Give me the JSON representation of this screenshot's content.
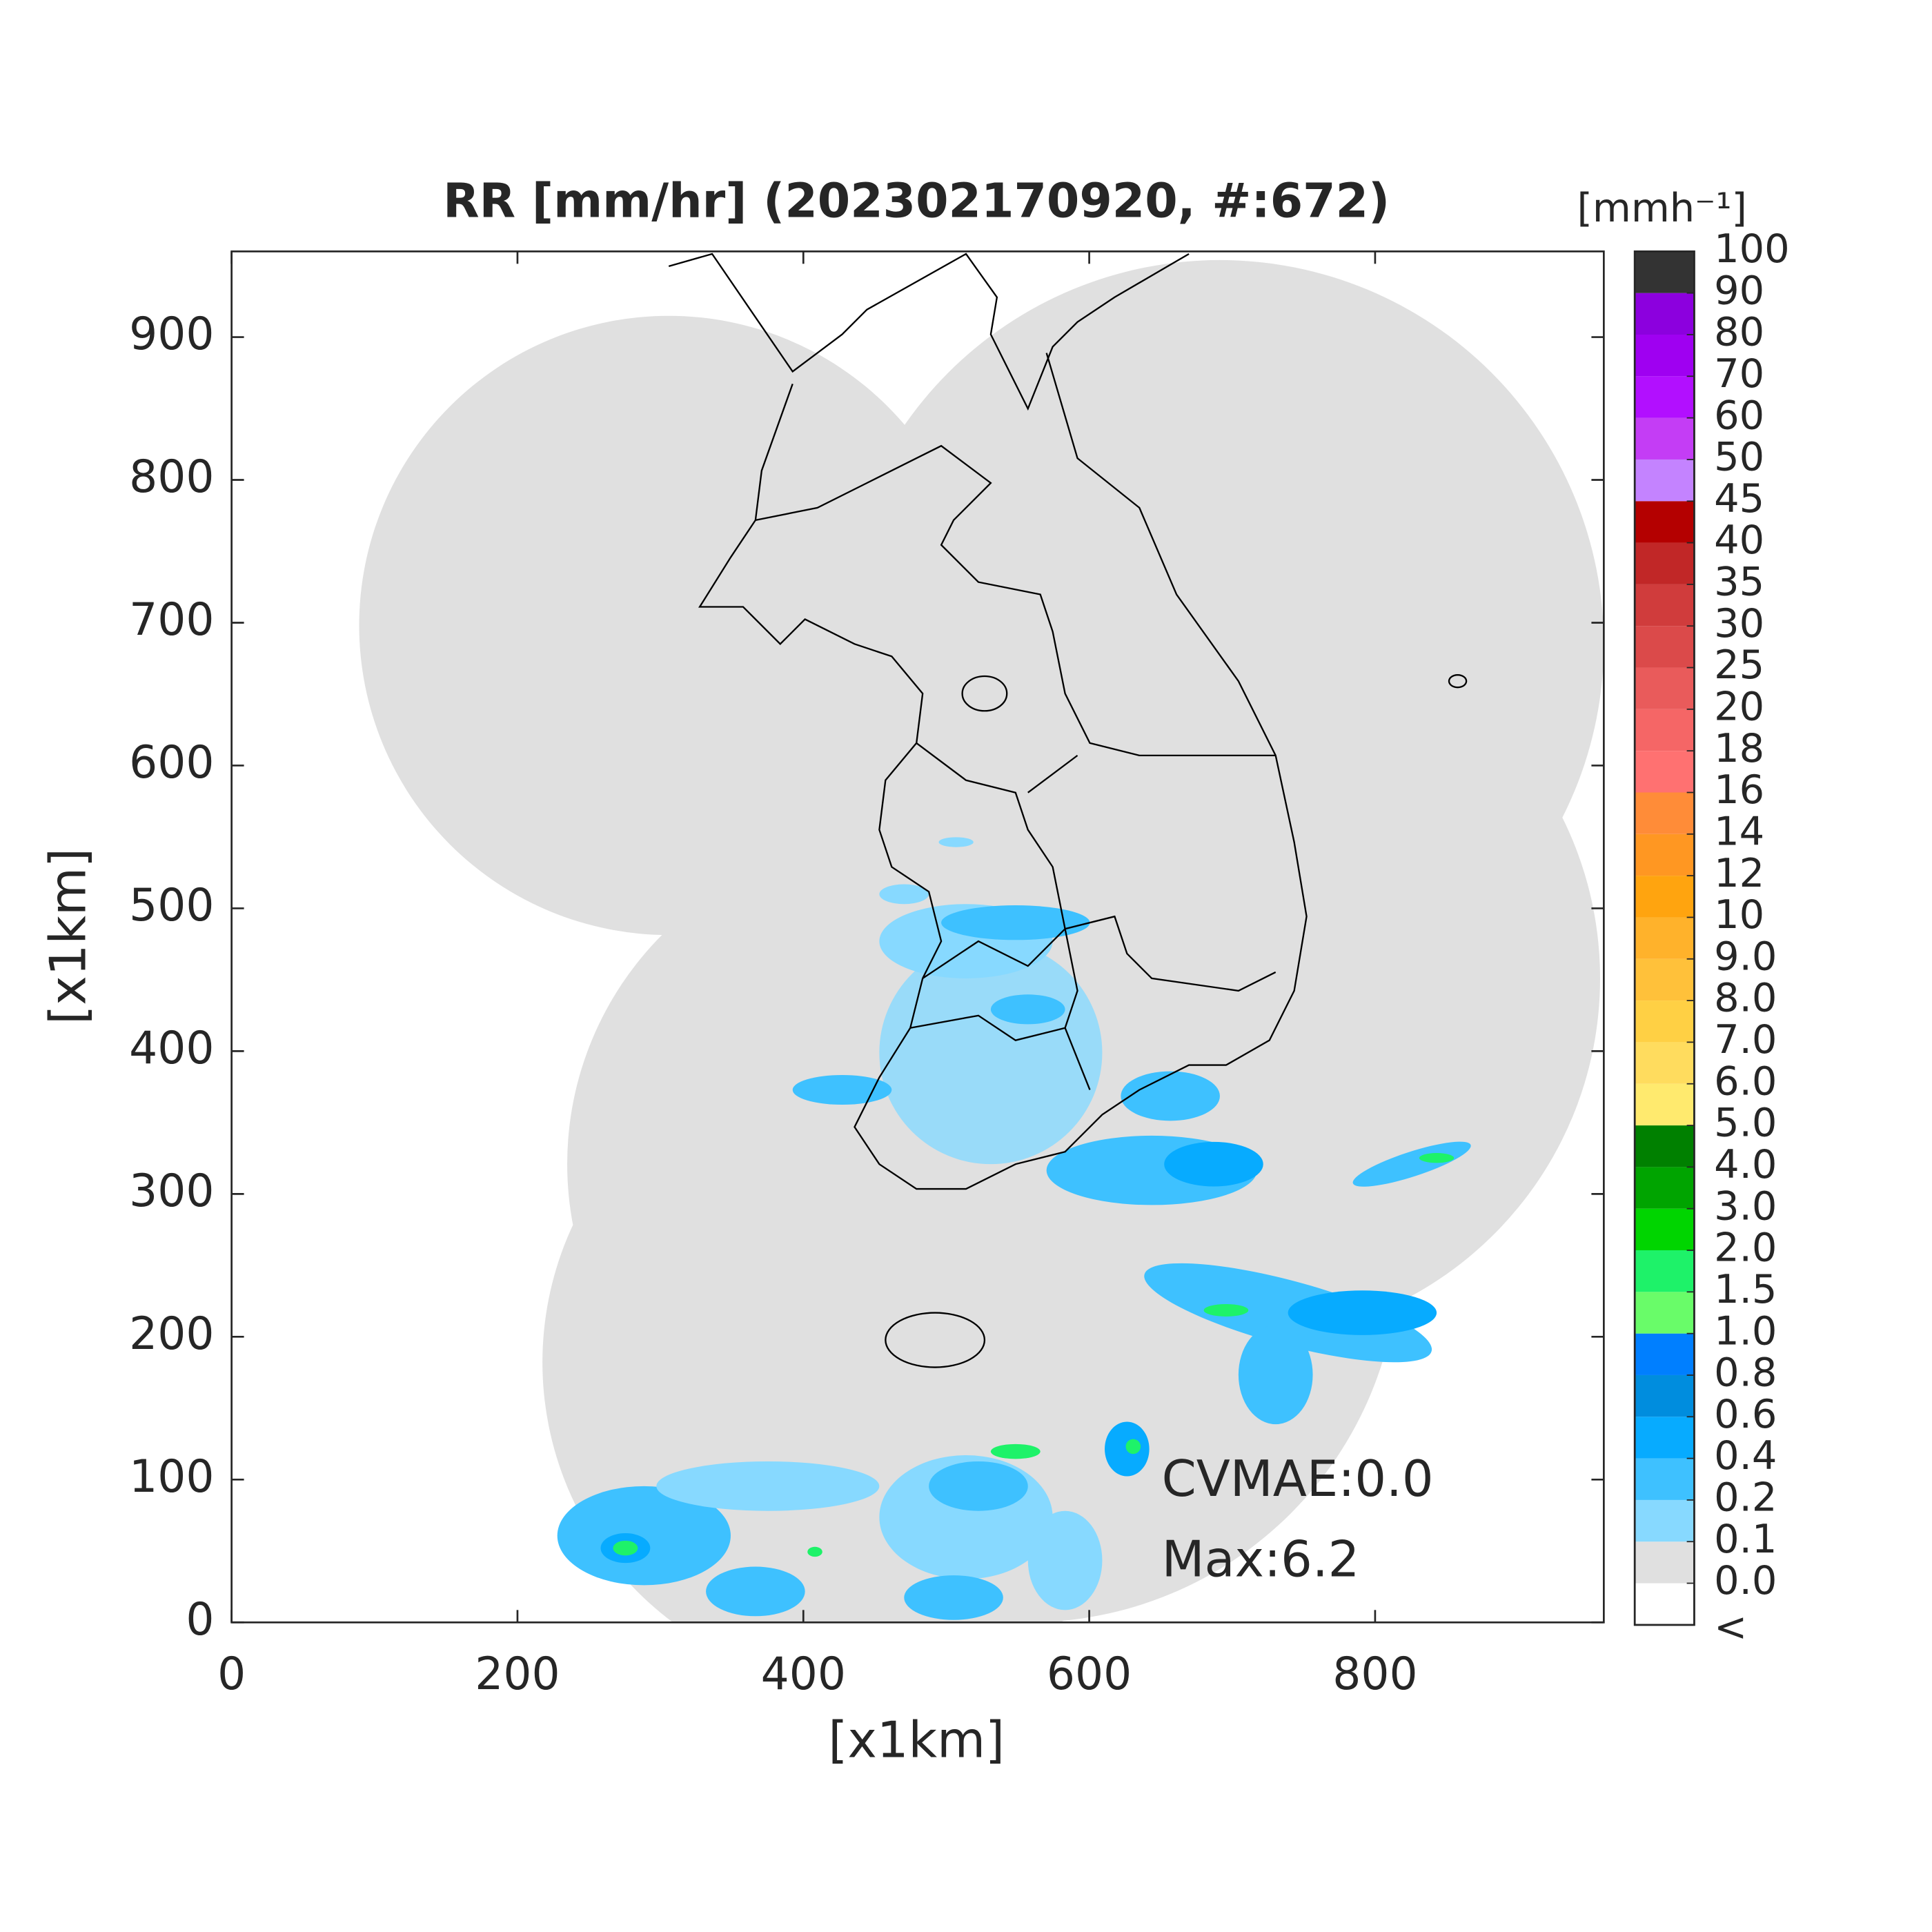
{
  "chart_data": {
    "type": "heatmap",
    "title": "RR [mm/hr] (202302170920, #:672)",
    "xlabel": "[x1km]",
    "ylabel": "[x1km]",
    "xlim": [
      0,
      960
    ],
    "ylim": [
      0,
      960
    ],
    "xticks": [
      0,
      200,
      400,
      600,
      800
    ],
    "yticks": [
      0,
      100,
      200,
      300,
      400,
      500,
      600,
      700,
      800,
      900
    ],
    "annotations": [
      "CVMAE:0.0",
      "Max:6.2"
    ],
    "colorbar": {
      "title": "[mmh⁻¹]",
      "under_label": "<",
      "under_color": "#ffffff",
      "levels": [
        {
          "value": 0,
          "label": "0.0"
        },
        0.1,
        0.2,
        0.4,
        0.6,
        0.8,
        {
          "value": 1,
          "label": "1.0"
        },
        1.5,
        {
          "value": 2,
          "label": "2.0"
        },
        {
          "value": 3,
          "label": "3.0"
        },
        {
          "value": 4,
          "label": "4.0"
        },
        {
          "value": 5,
          "label": "5.0"
        },
        {
          "value": 6,
          "label": "6.0"
        },
        {
          "value": 7,
          "label": "7.0"
        },
        {
          "value": 8,
          "label": "8.0"
        },
        {
          "value": 9,
          "label": "9.0"
        },
        10,
        12,
        14,
        16,
        18,
        20,
        25,
        30,
        35,
        40,
        45,
        50,
        60,
        70,
        80,
        90,
        100
      ],
      "colors": [
        "#e0e0e0",
        "#87d9ff",
        "#3ec1ff",
        "#07abff",
        "#008dde",
        "#007fff",
        "#69fc69",
        "#1ef269",
        "#00d500",
        "#00a400",
        "#008000",
        "#ffea6e",
        "#ffdc5e",
        "#ffd044",
        "#ffc13a",
        "#ffb22b",
        "#ffa40f",
        "#ff9722",
        "#ff8c38",
        "#ff7171",
        "#f56666",
        "#e95b5b",
        "#db4a4a",
        "#d03c3c",
        "#c12727",
        "#b40000",
        "#c483ff",
        "#c43df5",
        "#b20fff",
        "#9f00f1",
        "#8c00de",
        "#333333"
      ]
    }
  }
}
